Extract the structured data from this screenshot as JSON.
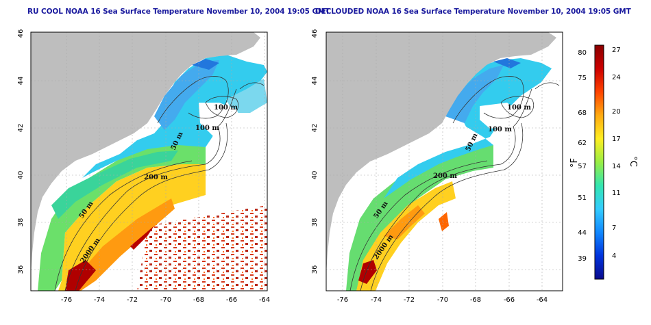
{
  "panels": [
    {
      "id": "left",
      "title": "RU COOL NOAA 16 Sea Surface Temperature November 10, 2004 19:05 GMT",
      "contour_labels": [
        "100 m",
        "100 m",
        "50 m",
        "200 m",
        "50 m",
        "2000 m"
      ]
    },
    {
      "id": "right",
      "title": "DECLOUDED NOAA 16 Sea Surface Temperature November 10, 2004 19:05 GMT",
      "contour_labels": [
        "100 m",
        "100 m",
        "50 m",
        "200 m",
        "50 m",
        "2000 m"
      ]
    }
  ],
  "axes": {
    "lon_ticks": [
      "-76",
      "-74",
      "-72",
      "-70",
      "-68",
      "-66",
      "-64"
    ],
    "lat_ticks": [
      "36",
      "38",
      "40",
      "42",
      "44",
      "46"
    ],
    "lon_range": [
      -77.2,
      -62.8
    ],
    "lat_range": [
      35.0,
      46.0
    ]
  },
  "colorbar": {
    "fahrenheit_ticks": [
      "80",
      "75",
      "68",
      "62",
      "57",
      "51",
      "44",
      "39"
    ],
    "celsius_ticks": [
      "27",
      "24",
      "20",
      "17",
      "14",
      "11",
      "7",
      "4"
    ],
    "fahrenheit_unit": "°F",
    "celsius_unit": "°C",
    "colors": [
      "#0a0a8c",
      "#0033dd",
      "#1188ff",
      "#33ccff",
      "#33e6b0",
      "#99ee44",
      "#ffee22",
      "#ffaa11",
      "#ff4400",
      "#cc0000",
      "#8a0000"
    ],
    "land_color": "#bebebe"
  }
}
